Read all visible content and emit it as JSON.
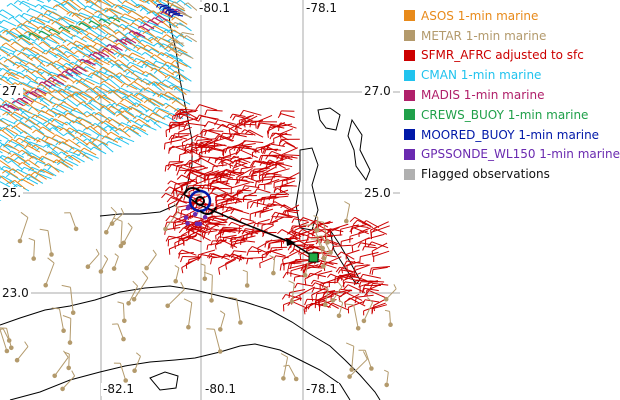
{
  "map": {
    "lon_labels_top": [
      "-80.1",
      "-78.1"
    ],
    "lon_labels_bottom": [
      "-82.1",
      "-80.1",
      "-78.1"
    ],
    "lat_labels_left": [
      "27.",
      "25.",
      "23.0"
    ],
    "lat_labels_right": [
      "27.0",
      "25.0"
    ],
    "storm_center_icon": "hurricane-symbol-icon",
    "track_color": "#000000",
    "buoy_marker_color": "#22aa44"
  },
  "legend": {
    "items": [
      {
        "label": "ASOS 1-min marine",
        "color": "#e88a1a"
      },
      {
        "label": "METAR 1-min marine",
        "color": "#b39a6c"
      },
      {
        "label": "SFMR_AFRC adjusted to sfc",
        "color": "#cc0000"
      },
      {
        "label": "CMAN 1-min marine",
        "color": "#21c3ee"
      },
      {
        "label": "MADIS 1-min marine",
        "color": "#b0206a"
      },
      {
        "label": "CREWS_BUOY 1-min marine",
        "color": "#20a04a"
      },
      {
        "label": "MOORED_BUOY 1-min marine",
        "color": "#0018a8"
      },
      {
        "label": "GPSSONDE_WL150 1-min marine",
        "color": "#6a2ab0"
      },
      {
        "label": "Flagged observations",
        "color": "#b0b0b0"
      }
    ]
  }
}
